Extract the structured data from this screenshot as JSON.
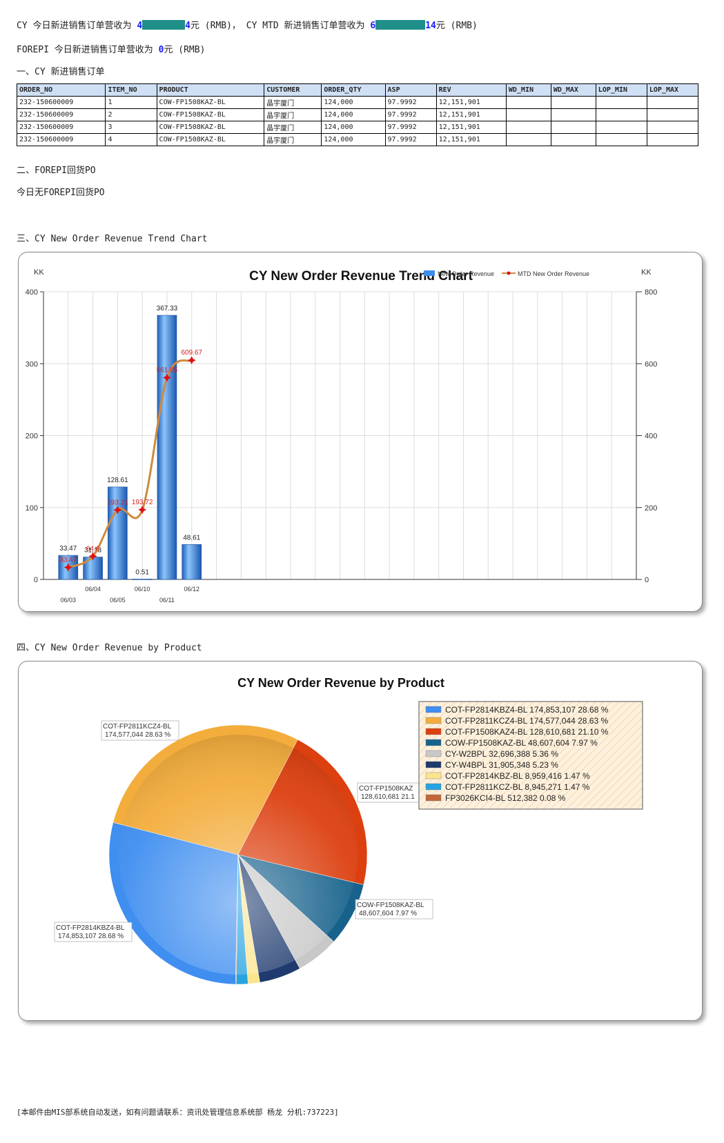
{
  "summary": {
    "line1_a": "CY 今日新进销售订单营收为 ",
    "line1_val1_prefix": "4",
    "line1_val1_suffix": "4",
    "line1_b": "元 (RMB)， CY MTD 新进销售订单营收为 ",
    "line1_val2_prefix": "6",
    "line1_val2_suffix": "14",
    "line1_c": "元 (RMB)",
    "line2_a": "FOREPI 今日新进销售订单营收为 ",
    "line2_val": "0",
    "line2_b": "元 (RMB)"
  },
  "section1": {
    "title": "一、CY 新进销售订单",
    "columns": [
      "ORDER_NO",
      "ITEM_NO",
      "PRODUCT",
      "CUSTOMER",
      "ORDER_QTY",
      "ASP",
      "REV",
      "WD_MIN",
      "WD_MAX",
      "LOP_MIN",
      "LOP_MAX"
    ],
    "rows": [
      [
        "232-150600009",
        "1",
        "COW-FP1508KAZ-BL",
        "晶宇厦门",
        "124,000",
        "97.9992",
        "12,151,901",
        "",
        "",
        "",
        ""
      ],
      [
        "232-150600009",
        "2",
        "COW-FP1508KAZ-BL",
        "晶宇厦门",
        "124,000",
        "97.9992",
        "12,151,901",
        "",
        "",
        "",
        ""
      ],
      [
        "232-150600009",
        "3",
        "COW-FP1508KAZ-BL",
        "晶宇厦门",
        "124,000",
        "97.9992",
        "12,151,901",
        "",
        "",
        "",
        ""
      ],
      [
        "232-150600009",
        "4",
        "COW-FP1508KAZ-BL",
        "晶宇厦门",
        "124,000",
        "97.9992",
        "12,151,901",
        "",
        "",
        "",
        ""
      ]
    ]
  },
  "section2": {
    "title": "二、FOREPI回货PO",
    "text": "今日无FOREPI回货PO"
  },
  "section3": {
    "title": "三、CY New Order Revenue Trend Chart"
  },
  "section4": {
    "title": "四、CY New Order Revenue by Product"
  },
  "footer": "[本邮件由MIS部系统自动发送，如有问题请联系：资讯处管理信息系统部 杨龙 分机:737223]",
  "chart_data": [
    {
      "type": "bar",
      "title": "CY New Order Revenue Trend Chart",
      "ylabel": "KK",
      "y2label": "KK",
      "ylim": [
        0,
        400
      ],
      "y2lim": [
        0,
        800
      ],
      "yticks": [
        0,
        100,
        200,
        300,
        400
      ],
      "y2ticks": [
        0,
        200,
        400,
        600,
        800
      ],
      "categories": [
        "06/03",
        "06/04",
        "06/05",
        "06/10",
        "06/11",
        "06/12"
      ],
      "series": [
        {
          "name": "New Order Revenue",
          "type": "bar",
          "axis": "left",
          "color": "#3d8ee8",
          "values": [
            33.47,
            31.13,
            128.61,
            0.51,
            367.33,
            48.61
          ]
        },
        {
          "name": "MTD New Order Revenue",
          "type": "line",
          "axis": "right",
          "color": "#d08a3c",
          "marker_color": "#e01010",
          "values": [
            33.47,
            64.6,
            193.21,
            193.72,
            561.05,
            609.67
          ]
        }
      ],
      "bar_labels": [
        "33.47",
        "31.13",
        "128.61",
        "0.51",
        "367.33",
        "48.61"
      ],
      "line_labels": [
        "33.47",
        "64.6",
        "193.21",
        "193.72",
        "561.05",
        "609.67"
      ],
      "legend": "top-right",
      "grid": true
    },
    {
      "type": "pie",
      "title": "CY New Order Revenue by Product",
      "legend": "top-right",
      "slices": [
        {
          "label": "COT-FP2814KBZ4-BL",
          "value": 174853107,
          "value_text": "174,853,107",
          "pct": "28.68 %",
          "color": "#3f8ef0"
        },
        {
          "label": "COT-FP2811KCZ4-BL",
          "value": 174577044,
          "value_text": "174,577,044",
          "pct": "28.63 %",
          "color": "#f3ad3d"
        },
        {
          "label": "COT-FP1508KAZ4-BL",
          "value": 128610681,
          "value_text": "128,610,681",
          "pct": "21.10 %",
          "color": "#dc4010"
        },
        {
          "label": "COW-FP1508KAZ-BL",
          "value": 48607604,
          "value_text": "48,607,604",
          "pct": "7.97 %",
          "color": "#17628c"
        },
        {
          "label": "CY-W2BPL",
          "value": 32696388,
          "value_text": "32,696,388",
          "pct": "5.36 %",
          "color": "#c8c8c8"
        },
        {
          "label": "CY-W4BPL",
          "value": 31905348,
          "value_text": "31,905,348",
          "pct": "5.23 %",
          "color": "#1e3a6e"
        },
        {
          "label": "COT-FP2814KBZ-BL",
          "value": 8959416,
          "value_text": "8,959,416",
          "pct": "1.47 %",
          "color": "#fbe48e"
        },
        {
          "label": "COT-FP2811KCZ-BL",
          "value": 8945271,
          "value_text": "8,945,271",
          "pct": "1.47 %",
          "color": "#27a3df"
        },
        {
          "label": "FP3026KCI4-BL",
          "value": 512382,
          "value_text": "512,382",
          "pct": "0.08 %",
          "color": "#c2663a"
        }
      ],
      "callouts": [
        {
          "label": "COT-FP2811KCZ4-BL",
          "text": "174,577,044  28.63 %"
        },
        {
          "label": "COT-FP1508KAZ",
          "text": "128,610,681  21.1"
        },
        {
          "label": "COW-FP1508KAZ-BL",
          "text": "48,607,604  7.97 %"
        },
        {
          "label": "COT-FP2814KBZ4-BL",
          "text": "174,853,107  28.68 %"
        }
      ]
    }
  ]
}
